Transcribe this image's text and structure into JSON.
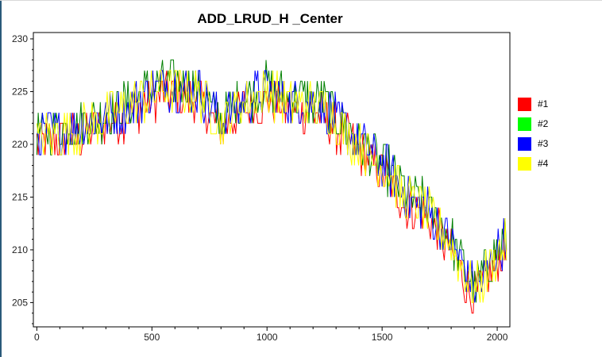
{
  "chart_data": {
    "type": "line",
    "title": "ADD_LRUD_H _Center",
    "xlabel": "",
    "ylabel": "",
    "xlim": [
      -15,
      2055
    ],
    "ylim": [
      202.7,
      230.6
    ],
    "x_ticks": [
      0,
      500,
      1000,
      1500,
      2000
    ],
    "y_ticks": [
      205,
      210,
      215,
      220,
      225,
      230
    ],
    "x_minor_step": 100,
    "legend_position": "right",
    "grid": false,
    "trend_points": [
      [
        0,
        220.5
      ],
      [
        200,
        221.5
      ],
      [
        400,
        223.5
      ],
      [
        550,
        225.5
      ],
      [
        700,
        225
      ],
      [
        800,
        222
      ],
      [
        900,
        224
      ],
      [
        1000,
        225
      ],
      [
        1100,
        224
      ],
      [
        1250,
        223.5
      ],
      [
        1300,
        222
      ],
      [
        1400,
        220
      ],
      [
        1500,
        218
      ],
      [
        1600,
        215
      ],
      [
        1700,
        213.5
      ],
      [
        1800,
        210.5
      ],
      [
        1900,
        206
      ],
      [
        1950,
        207.5
      ],
      [
        2000,
        209.5
      ],
      [
        2050,
        211
      ]
    ],
    "series": [
      {
        "name": "#1",
        "color": "#ff0000",
        "offset": -0.6
      },
      {
        "name": "#2",
        "color": "#008000",
        "offset": 0.4
      },
      {
        "name": "#3",
        "color": "#0000ff",
        "offset": 0.2
      },
      {
        "name": "#4",
        "color": "#ffff00",
        "offset": 0.0
      }
    ],
    "legend_swatch_colors": [
      "#ff0000",
      "#00ff00",
      "#0000ff",
      "#ffff00"
    ]
  }
}
